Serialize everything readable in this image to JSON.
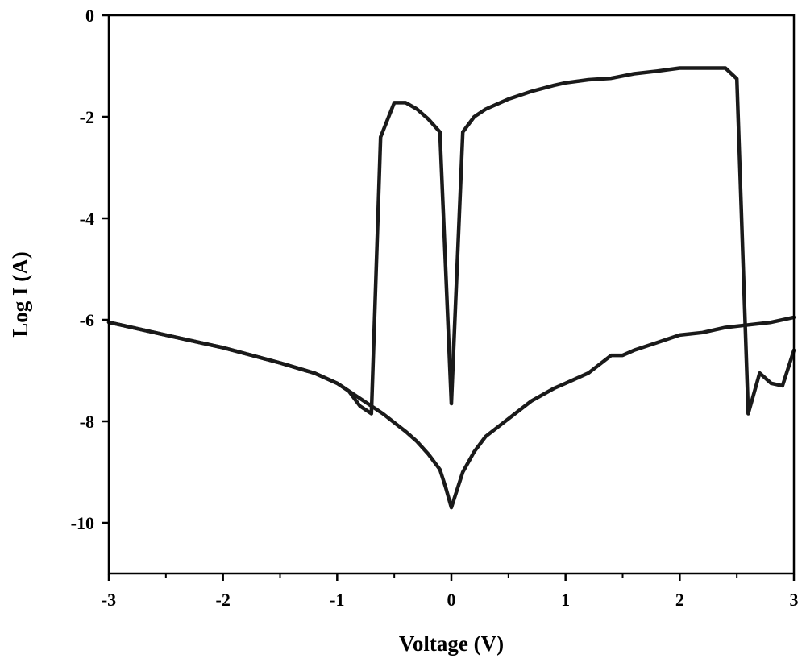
{
  "chart_data": {
    "type": "line",
    "title": "",
    "xlabel": "Voltage (V)",
    "ylabel": "Log I (A)",
    "xlim": [
      -3,
      3
    ],
    "ylim": [
      -11,
      0
    ],
    "xticks": [
      -3,
      -2,
      -1,
      0,
      1,
      2,
      3
    ],
    "yticks": [
      0,
      -2,
      -4,
      -6,
      -8,
      -10
    ],
    "xtick_labels": [
      "-3",
      "-2",
      "-1",
      "0",
      "1",
      "2",
      "3"
    ],
    "ytick_labels": [
      "0",
      "-2",
      "-4",
      "-6",
      "-8",
      "-10"
    ],
    "grid": false,
    "legend": "none",
    "line_color": "#1a1a1a",
    "series": [
      {
        "values": [
          [
            -3.0,
            -6.05
          ],
          [
            -2.5,
            -6.3
          ],
          [
            -2.0,
            -6.55
          ],
          [
            -1.5,
            -6.85
          ],
          [
            -1.2,
            -7.05
          ],
          [
            -1.0,
            -7.25
          ],
          [
            -0.9,
            -7.4
          ],
          [
            -0.8,
            -7.7
          ],
          [
            -0.7,
            -7.85
          ],
          [
            -0.62,
            -2.4
          ],
          [
            -0.5,
            -1.72
          ],
          [
            -0.4,
            -1.72
          ],
          [
            -0.3,
            -1.85
          ],
          [
            -0.2,
            -2.05
          ],
          [
            -0.1,
            -2.3
          ],
          [
            0.0,
            -7.65
          ],
          [
            0.1,
            -2.3
          ],
          [
            0.2,
            -2.0
          ],
          [
            0.3,
            -1.85
          ],
          [
            0.5,
            -1.65
          ],
          [
            0.7,
            -1.5
          ],
          [
            0.9,
            -1.38
          ],
          [
            1.0,
            -1.33
          ],
          [
            1.2,
            -1.27
          ],
          [
            1.4,
            -1.24
          ],
          [
            1.6,
            -1.15
          ],
          [
            1.8,
            -1.1
          ],
          [
            2.0,
            -1.04
          ],
          [
            2.2,
            -1.04
          ],
          [
            2.4,
            -1.04
          ],
          [
            2.5,
            -1.25
          ],
          [
            2.6,
            -7.85
          ],
          [
            2.7,
            -7.05
          ],
          [
            2.8,
            -7.25
          ],
          [
            2.9,
            -7.3
          ],
          [
            3.0,
            -6.6
          ]
        ]
      },
      {
        "values": [
          [
            -3.0,
            -6.05
          ],
          [
            -2.5,
            -6.3
          ],
          [
            -2.0,
            -6.55
          ],
          [
            -1.5,
            -6.85
          ],
          [
            -1.2,
            -7.05
          ],
          [
            -1.0,
            -7.25
          ],
          [
            -0.8,
            -7.55
          ],
          [
            -0.6,
            -7.85
          ],
          [
            -0.4,
            -8.2
          ],
          [
            -0.3,
            -8.4
          ],
          [
            -0.2,
            -8.65
          ],
          [
            -0.1,
            -8.95
          ],
          [
            -0.05,
            -9.3
          ],
          [
            0.0,
            -9.7
          ],
          [
            0.05,
            -9.35
          ],
          [
            0.1,
            -9.0
          ],
          [
            0.2,
            -8.6
          ],
          [
            0.3,
            -8.3
          ],
          [
            0.5,
            -7.95
          ],
          [
            0.7,
            -7.6
          ],
          [
            0.9,
            -7.35
          ],
          [
            1.0,
            -7.25
          ],
          [
            1.2,
            -7.05
          ],
          [
            1.4,
            -6.7
          ],
          [
            1.5,
            -6.7
          ],
          [
            1.6,
            -6.6
          ],
          [
            1.8,
            -6.45
          ],
          [
            2.0,
            -6.3
          ],
          [
            2.2,
            -6.25
          ],
          [
            2.4,
            -6.15
          ],
          [
            2.6,
            -6.1
          ],
          [
            2.8,
            -6.05
          ],
          [
            3.0,
            -5.95
          ]
        ]
      }
    ]
  }
}
